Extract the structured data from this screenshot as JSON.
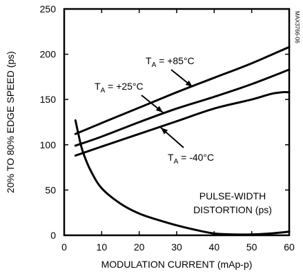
{
  "chart_data": {
    "type": "line",
    "title": "",
    "xlabel": "MODULATION CURRENT (mAp-p)",
    "ylabel": "20% TO 80% EDGE SPEED (ps)",
    "xlim": [
      0,
      60
    ],
    "ylim": [
      0,
      250
    ],
    "x_ticks": [
      "0",
      "10",
      "20",
      "30",
      "40",
      "50",
      "60"
    ],
    "y_ticks": [
      "0",
      "50",
      "100",
      "150",
      "200",
      "250"
    ],
    "x_tick_values": [
      0,
      10,
      20,
      30,
      40,
      50,
      60
    ],
    "y_tick_values": [
      0,
      50,
      100,
      150,
      200,
      250
    ],
    "grid": false,
    "legend": "none",
    "side_label": "MAX3766-06",
    "series": [
      {
        "name": "T_A = +85°C",
        "label_main": "T",
        "label_sub": "A",
        "label_rest": " = +85°C",
        "x": [
          3,
          10,
          20,
          30,
          40,
          50,
          60
        ],
        "y": [
          112,
          124,
          141,
          158,
          174,
          190,
          208
        ]
      },
      {
        "name": "T_A = +25°C",
        "label_main": "T",
        "label_sub": "A",
        "label_rest": " = +25°C",
        "x": [
          3,
          10,
          20,
          30,
          40,
          50,
          60
        ],
        "y": [
          99,
          109,
          125,
          140,
          153,
          167,
          183
        ]
      },
      {
        "name": "T_A = -40°C",
        "label_main": "T",
        "label_sub": "A",
        "label_rest": " = -40°C",
        "x": [
          3,
          10,
          20,
          30,
          40,
          50,
          55,
          58,
          60
        ],
        "y": [
          88,
          98,
          112,
          126,
          140,
          150,
          156,
          158,
          158
        ]
      },
      {
        "name": "PULSE-WIDTH DISTORTION (ps)",
        "label_line1": "PULSE-WIDTH",
        "label_line2": "DISTORTION (ps)",
        "x": [
          3,
          4,
          5,
          7,
          10,
          15,
          20,
          25,
          30,
          35,
          40,
          45,
          50,
          55,
          60
        ],
        "y": [
          127,
          108,
          92,
          72,
          52,
          35,
          24,
          17,
          11,
          6,
          2,
          1,
          1,
          2,
          4
        ]
      }
    ]
  }
}
